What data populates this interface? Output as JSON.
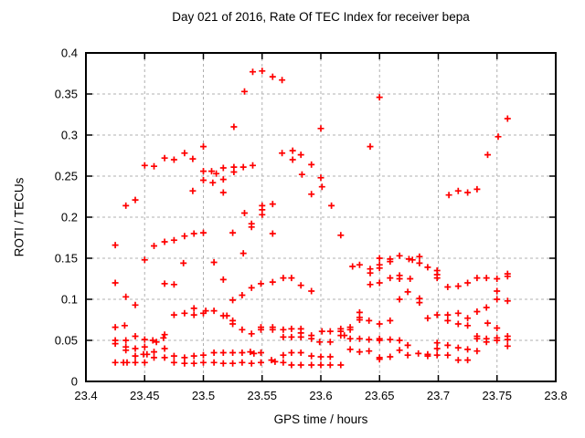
{
  "page": {
    "background": "#ffffff"
  },
  "chart_data": {
    "type": "scatter",
    "title": "Day 021 of 2016, Rate Of TEC Index for receiver bepa",
    "xlabel": "GPS time / hours",
    "ylabel": "ROTI / TECUs",
    "xlim": [
      23.4,
      23.8
    ],
    "ylim": [
      0,
      0.4
    ],
    "xticks": {
      "values": [
        23.4,
        23.45,
        23.5,
        23.55,
        23.6,
        23.65,
        23.7,
        23.75,
        23.8
      ],
      "labels": [
        "23.4",
        "23.45",
        "23.5",
        "23.55",
        "23.6",
        "23.65",
        "23.7",
        "23.75",
        "23.8"
      ]
    },
    "yticks": {
      "values": [
        0,
        0.05,
        0.1,
        0.15,
        0.2,
        0.25,
        0.3,
        0.35,
        0.4
      ],
      "labels": [
        "0",
        "0.05",
        "0.1",
        "0.15",
        "0.2",
        "0.25",
        "0.3",
        "0.35",
        "0.4"
      ]
    },
    "grid": true,
    "legend": "none",
    "marker": {
      "shape": "plus",
      "color": "#ff0000",
      "size": 7
    },
    "frame_color": "#000000",
    "grid_color": "#b0b0b0",
    "series": [
      {
        "name": "ROTI",
        "points": [
          [
            23.434,
            0.214
          ],
          [
            23.442,
            0.221
          ],
          [
            23.45,
            0.263
          ],
          [
            23.458,
            0.262
          ],
          [
            23.467,
            0.272
          ],
          [
            23.475,
            0.27
          ],
          [
            23.484,
            0.278
          ],
          [
            23.491,
            0.271
          ],
          [
            23.491,
            0.232
          ],
          [
            23.5,
            0.286
          ],
          [
            23.5,
            0.256
          ],
          [
            23.5,
            0.245
          ],
          [
            23.507,
            0.256
          ],
          [
            23.511,
            0.253
          ],
          [
            23.508,
            0.242
          ],
          [
            23.517,
            0.26
          ],
          [
            23.517,
            0.246
          ],
          [
            23.517,
            0.23
          ],
          [
            23.526,
            0.261
          ],
          [
            23.526,
            0.255
          ],
          [
            23.534,
            0.261
          ],
          [
            23.542,
            0.263
          ],
          [
            23.526,
            0.31
          ],
          [
            23.535,
            0.353
          ],
          [
            23.542,
            0.377
          ],
          [
            23.55,
            0.378
          ],
          [
            23.559,
            0.371
          ],
          [
            23.567,
            0.367
          ],
          [
            23.535,
            0.205
          ],
          [
            23.55,
            0.214
          ],
          [
            23.55,
            0.209
          ],
          [
            23.55,
            0.203
          ],
          [
            23.559,
            0.216
          ],
          [
            23.567,
            0.278
          ],
          [
            23.576,
            0.281
          ],
          [
            23.576,
            0.27
          ],
          [
            23.583,
            0.276
          ],
          [
            23.584,
            0.252
          ],
          [
            23.592,
            0.264
          ],
          [
            23.592,
            0.228
          ],
          [
            23.6,
            0.308
          ],
          [
            23.6,
            0.248
          ],
          [
            23.601,
            0.237
          ],
          [
            23.609,
            0.214
          ],
          [
            23.642,
            0.286
          ],
          [
            23.65,
            0.346
          ],
          [
            23.709,
            0.227
          ],
          [
            23.717,
            0.232
          ],
          [
            23.725,
            0.23
          ],
          [
            23.733,
            0.234
          ],
          [
            23.742,
            0.276
          ],
          [
            23.751,
            0.298
          ],
          [
            23.759,
            0.32
          ],
          [
            23.425,
            0.166
          ],
          [
            23.425,
            0.12
          ],
          [
            23.434,
            0.103
          ],
          [
            23.442,
            0.093
          ],
          [
            23.45,
            0.148
          ],
          [
            23.458,
            0.165
          ],
          [
            23.467,
            0.17
          ],
          [
            23.475,
            0.172
          ],
          [
            23.484,
            0.177
          ],
          [
            23.492,
            0.18
          ],
          [
            23.5,
            0.181
          ],
          [
            23.483,
            0.144
          ],
          [
            23.467,
            0.119
          ],
          [
            23.475,
            0.118
          ],
          [
            23.509,
            0.145
          ],
          [
            23.517,
            0.124
          ],
          [
            23.525,
            0.181
          ],
          [
            23.534,
            0.156
          ],
          [
            23.541,
            0.192
          ],
          [
            23.541,
            0.188
          ],
          [
            23.541,
            0.114
          ],
          [
            23.549,
            0.119
          ],
          [
            23.559,
            0.18
          ],
          [
            23.559,
            0.121
          ],
          [
            23.568,
            0.126
          ],
          [
            23.575,
            0.126
          ],
          [
            23.583,
            0.117
          ],
          [
            23.592,
            0.11
          ],
          [
            23.533,
            0.105
          ],
          [
            23.525,
            0.099
          ],
          [
            23.617,
            0.178
          ],
          [
            23.627,
            0.14
          ],
          [
            23.633,
            0.142
          ],
          [
            23.642,
            0.137
          ],
          [
            23.642,
            0.132
          ],
          [
            23.642,
            0.118
          ],
          [
            23.65,
            0.15
          ],
          [
            23.65,
            0.142
          ],
          [
            23.65,
            0.138
          ],
          [
            23.65,
            0.12
          ],
          [
            23.659,
            0.149
          ],
          [
            23.659,
            0.146
          ],
          [
            23.659,
            0.126
          ],
          [
            23.667,
            0.153
          ],
          [
            23.667,
            0.129
          ],
          [
            23.667,
            0.125
          ],
          [
            23.667,
            0.1
          ],
          [
            23.675,
            0.149
          ],
          [
            23.678,
            0.148
          ],
          [
            23.676,
            0.125
          ],
          [
            23.674,
            0.109
          ],
          [
            23.684,
            0.152
          ],
          [
            23.684,
            0.144
          ],
          [
            23.684,
            0.101
          ],
          [
            23.684,
            0.096
          ],
          [
            23.691,
            0.139
          ],
          [
            23.699,
            0.135
          ],
          [
            23.699,
            0.13
          ],
          [
            23.699,
            0.126
          ],
          [
            23.708,
            0.115
          ],
          [
            23.717,
            0.116
          ],
          [
            23.725,
            0.12
          ],
          [
            23.733,
            0.126
          ],
          [
            23.741,
            0.126
          ],
          [
            23.75,
            0.125
          ],
          [
            23.759,
            0.131
          ],
          [
            23.759,
            0.128
          ],
          [
            23.75,
            0.11
          ],
          [
            23.75,
            0.1
          ],
          [
            23.759,
            0.098
          ],
          [
            23.741,
            0.09
          ],
          [
            23.425,
            0.066
          ],
          [
            23.433,
            0.068
          ],
          [
            23.475,
            0.081
          ],
          [
            23.484,
            0.083
          ],
          [
            23.492,
            0.089
          ],
          [
            23.492,
            0.081
          ],
          [
            23.5,
            0.083
          ],
          [
            23.502,
            0.086
          ],
          [
            23.509,
            0.086
          ],
          [
            23.517,
            0.08
          ],
          [
            23.52,
            0.08
          ],
          [
            23.525,
            0.074
          ],
          [
            23.525,
            0.07
          ],
          [
            23.533,
            0.063
          ],
          [
            23.549,
            0.066
          ],
          [
            23.549,
            0.063
          ],
          [
            23.559,
            0.066
          ],
          [
            23.559,
            0.063
          ],
          [
            23.568,
            0.063
          ],
          [
            23.575,
            0.064
          ],
          [
            23.583,
            0.064
          ],
          [
            23.601,
            0.061
          ],
          [
            23.608,
            0.061
          ],
          [
            23.617,
            0.064
          ],
          [
            23.617,
            0.061
          ],
          [
            23.625,
            0.066
          ],
          [
            23.625,
            0.063
          ],
          [
            23.633,
            0.084
          ],
          [
            23.633,
            0.078
          ],
          [
            23.633,
            0.075
          ],
          [
            23.641,
            0.074
          ],
          [
            23.65,
            0.07
          ],
          [
            23.659,
            0.074
          ],
          [
            23.691,
            0.077
          ],
          [
            23.699,
            0.081
          ],
          [
            23.708,
            0.081
          ],
          [
            23.708,
            0.074
          ],
          [
            23.717,
            0.083
          ],
          [
            23.717,
            0.07
          ],
          [
            23.725,
            0.077
          ],
          [
            23.725,
            0.068
          ],
          [
            23.733,
            0.085
          ],
          [
            23.742,
            0.071
          ],
          [
            23.75,
            0.065
          ],
          [
            23.425,
            0.05
          ],
          [
            23.425,
            0.046
          ],
          [
            23.425,
            0.023
          ],
          [
            23.432,
            0.023
          ],
          [
            23.435,
            0.023
          ],
          [
            23.434,
            0.05
          ],
          [
            23.434,
            0.042
          ],
          [
            23.434,
            0.038
          ],
          [
            23.442,
            0.055
          ],
          [
            23.442,
            0.04
          ],
          [
            23.442,
            0.031
          ],
          [
            23.442,
            0.023
          ],
          [
            23.45,
            0.051
          ],
          [
            23.45,
            0.042
          ],
          [
            23.449,
            0.033
          ],
          [
            23.452,
            0.033
          ],
          [
            23.45,
            0.023
          ],
          [
            23.457,
            0.05
          ],
          [
            23.46,
            0.048
          ],
          [
            23.458,
            0.036
          ],
          [
            23.458,
            0.029
          ],
          [
            23.466,
            0.053
          ],
          [
            23.467,
            0.057
          ],
          [
            23.467,
            0.04
          ],
          [
            23.467,
            0.029
          ],
          [
            23.475,
            0.031
          ],
          [
            23.475,
            0.023
          ],
          [
            23.484,
            0.029
          ],
          [
            23.484,
            0.022
          ],
          [
            23.492,
            0.031
          ],
          [
            23.492,
            0.022
          ],
          [
            23.5,
            0.032
          ],
          [
            23.5,
            0.023
          ],
          [
            23.509,
            0.035
          ],
          [
            23.509,
            0.023
          ],
          [
            23.517,
            0.035
          ],
          [
            23.517,
            0.022
          ],
          [
            23.525,
            0.035
          ],
          [
            23.525,
            0.022
          ],
          [
            23.533,
            0.035
          ],
          [
            23.533,
            0.023
          ],
          [
            23.54,
            0.036
          ],
          [
            23.543,
            0.034
          ],
          [
            23.541,
            0.022
          ],
          [
            23.549,
            0.035
          ],
          [
            23.549,
            0.023
          ],
          [
            23.541,
            0.058
          ],
          [
            23.558,
            0.026
          ],
          [
            23.561,
            0.024
          ],
          [
            23.568,
            0.054
          ],
          [
            23.568,
            0.032
          ],
          [
            23.568,
            0.023
          ],
          [
            23.575,
            0.054
          ],
          [
            23.575,
            0.035
          ],
          [
            23.575,
            0.02
          ],
          [
            23.583,
            0.059
          ],
          [
            23.583,
            0.054
          ],
          [
            23.583,
            0.035
          ],
          [
            23.583,
            0.02
          ],
          [
            23.592,
            0.056
          ],
          [
            23.592,
            0.052
          ],
          [
            23.592,
            0.031
          ],
          [
            23.592,
            0.02
          ],
          [
            23.6,
            0.03
          ],
          [
            23.6,
            0.02
          ],
          [
            23.599,
            0.048
          ],
          [
            23.608,
            0.048
          ],
          [
            23.608,
            0.03
          ],
          [
            23.608,
            0.02
          ],
          [
            23.617,
            0.056
          ],
          [
            23.62,
            0.056
          ],
          [
            23.617,
            0.02
          ],
          [
            23.625,
            0.052
          ],
          [
            23.625,
            0.039
          ],
          [
            23.633,
            0.052
          ],
          [
            23.633,
            0.036
          ],
          [
            23.641,
            0.051
          ],
          [
            23.641,
            0.037
          ],
          [
            23.65,
            0.052
          ],
          [
            23.65,
            0.05
          ],
          [
            23.65,
            0.029
          ],
          [
            23.65,
            0.027
          ],
          [
            23.659,
            0.051
          ],
          [
            23.659,
            0.03
          ],
          [
            23.667,
            0.05
          ],
          [
            23.667,
            0.038
          ],
          [
            23.674,
            0.044
          ],
          [
            23.674,
            0.032
          ],
          [
            23.683,
            0.034
          ],
          [
            23.691,
            0.033
          ],
          [
            23.691,
            0.031
          ],
          [
            23.699,
            0.047
          ],
          [
            23.699,
            0.04
          ],
          [
            23.699,
            0.032
          ],
          [
            23.708,
            0.044
          ],
          [
            23.708,
            0.032
          ],
          [
            23.717,
            0.041
          ],
          [
            23.717,
            0.026
          ],
          [
            23.725,
            0.039
          ],
          [
            23.725,
            0.026
          ],
          [
            23.733,
            0.055
          ],
          [
            23.733,
            0.052
          ],
          [
            23.733,
            0.037
          ],
          [
            23.741,
            0.052
          ],
          [
            23.741,
            0.048
          ],
          [
            23.75,
            0.053
          ],
          [
            23.75,
            0.05
          ],
          [
            23.759,
            0.055
          ],
          [
            23.759,
            0.051
          ],
          [
            23.759,
            0.043
          ]
        ]
      }
    ]
  }
}
